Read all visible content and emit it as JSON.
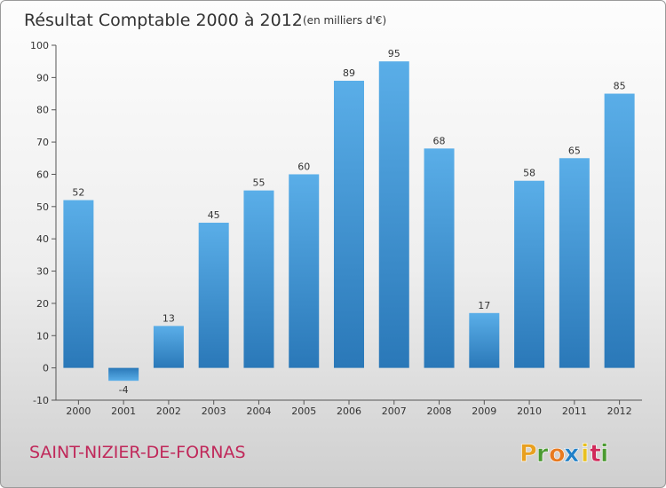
{
  "chart_data": {
    "type": "bar",
    "title": "Résultat Comptable 2000 à 2012",
    "subtitle": "(en milliers d'€)",
    "categories": [
      "2000",
      "2001",
      "2002",
      "2003",
      "2004",
      "2005",
      "2006",
      "2007",
      "2008",
      "2009",
      "2010",
      "2011",
      "2012"
    ],
    "values": [
      52,
      -4,
      13,
      45,
      55,
      60,
      89,
      95,
      68,
      17,
      58,
      65,
      85
    ],
    "value_labels": [
      "52",
      "-4",
      "13",
      "45",
      "55",
      "60",
      "89",
      "95",
      "68",
      "17",
      "58",
      "65",
      "85"
    ],
    "ylim": [
      -10,
      100
    ],
    "yticks": [
      -10,
      0,
      10,
      20,
      30,
      40,
      50,
      60,
      70,
      80,
      90,
      100
    ],
    "ytick_labels": [
      "-10",
      "0",
      "10",
      "20",
      "30",
      "40",
      "50",
      "60",
      "70",
      "80",
      "90",
      "100"
    ],
    "xlabel": "",
    "ylabel": "",
    "grid": false,
    "legend": false
  },
  "footer": {
    "commune": "SAINT-NIZIER-DE-FORNAS",
    "brand": [
      "P",
      "r",
      "o",
      "x",
      "i",
      "t",
      "i"
    ],
    "brand_text": "Proxiti"
  },
  "colors": {
    "bar_top": "#5aaee8",
    "bar_bottom": "#2a78b8",
    "commune": "#c0285a",
    "brand": [
      "#e8a020",
      "#4a9a30",
      "#e87a20",
      "#2080c8",
      "#e8c020",
      "#d02a5a",
      "#4a9a30"
    ]
  }
}
